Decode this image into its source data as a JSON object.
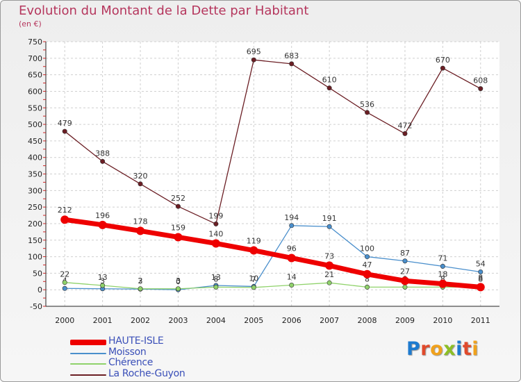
{
  "title": "Evolution du Montant de la Dette par Habitant",
  "subtitle": "(en €)",
  "logo": {
    "letters": [
      "P",
      "r",
      "o",
      "x",
      "i",
      "t",
      "i"
    ],
    "colors": [
      "#1e7bcf",
      "#e04a2c",
      "#f0a11c",
      "#8cbf26",
      "#1e7bcf",
      "#e04a2c",
      "#f0a11c"
    ]
  },
  "chart_data": {
    "type": "line",
    "x": [
      "2000",
      "2001",
      "2002",
      "2003",
      "2004",
      "2005",
      "2006",
      "2007",
      "2008",
      "2009",
      "2010",
      "2011"
    ],
    "ylim": [
      -50,
      750
    ],
    "yticks": [
      "-50",
      "0",
      "50",
      "100",
      "150",
      "200",
      "250",
      "300",
      "350",
      "400",
      "450",
      "500",
      "550",
      "600",
      "650",
      "700",
      "750"
    ],
    "grid": true,
    "legend_position": "bottom-left",
    "series": [
      {
        "name": "HAUTE-ISLE",
        "color": "#ee0000",
        "values": [
          212,
          196,
          178,
          159,
          140,
          119,
          96,
          73,
          47,
          27,
          18,
          8
        ]
      },
      {
        "name": "Moisson",
        "color": "#4a8fcc",
        "values": [
          4,
          3,
          2,
          0,
          13,
          10,
          194,
          191,
          100,
          87,
          71,
          54
        ]
      },
      {
        "name": "Chérence",
        "color": "#8fd26a",
        "values": [
          22,
          13,
          3,
          3,
          8,
          7,
          14,
          21,
          8,
          8,
          8,
          8
        ]
      },
      {
        "name": "La Roche-Guyon",
        "color": "#6b1e24",
        "values": [
          479,
          388,
          320,
          252,
          199,
          695,
          683,
          610,
          536,
          472,
          670,
          608
        ]
      }
    ]
  }
}
